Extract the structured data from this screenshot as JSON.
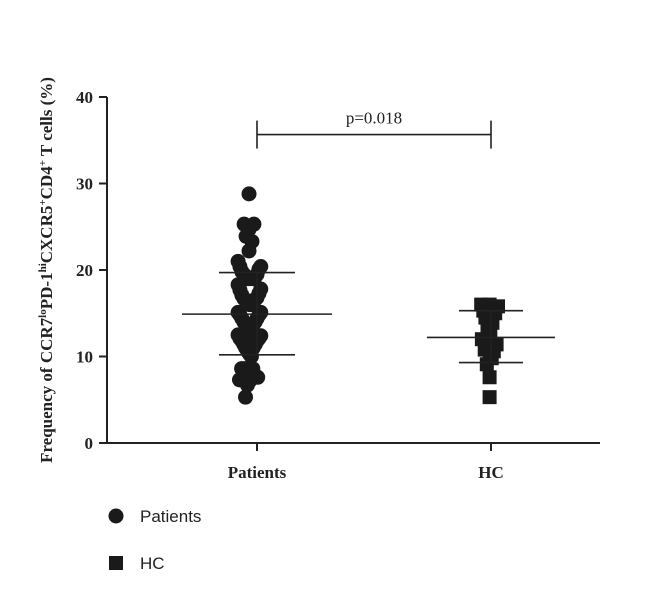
{
  "chart_data": {
    "type": "scatter",
    "ylabel": {
      "parts": [
        {
          "t": "Frequency of CCR7",
          "s": 0
        },
        {
          "t": "lo",
          "s": 1
        },
        {
          "t": "PD-1",
          "s": 0
        },
        {
          "t": "hi",
          "s": 1
        },
        {
          "t": "CXCR5",
          "s": 0
        },
        {
          "t": "+",
          "s": 1
        },
        {
          "t": "CD4",
          "s": 0
        },
        {
          "t": "+",
          "s": 1
        },
        {
          "t": " T cells (%)",
          "s": 0
        }
      ]
    },
    "ylim": [
      0,
      40
    ],
    "yticks": [
      "0",
      "10",
      "20",
      "30",
      "40"
    ],
    "categories": [
      "Patients",
      "HC"
    ],
    "annotation": {
      "text": "p=0.018",
      "from": "Patients",
      "to": "HC",
      "y": 36
    },
    "legend": {
      "position": "bottom-left",
      "items": [
        "Patients",
        "HC"
      ]
    },
    "series": [
      {
        "name": "Patients",
        "marker": "circle",
        "mean": 14.9,
        "sd_low": 10.2,
        "sd_high": 19.7,
        "points": [
          {
            "x": -0.57,
            "y": 28.8
          },
          {
            "x": -0.92,
            "y": 25.3
          },
          {
            "x": -0.22,
            "y": 25.3
          },
          {
            "x": -0.78,
            "y": 23.9
          },
          {
            "x": -0.57,
            "y": 24.7
          },
          {
            "x": -0.36,
            "y": 23.3
          },
          {
            "x": -0.57,
            "y": 22.2
          },
          {
            "x": -1.35,
            "y": 21.0
          },
          {
            "x": -1.22,
            "y": 20.4
          },
          {
            "x": -1.08,
            "y": 19.8
          },
          {
            "x": -0.94,
            "y": 19.5
          },
          {
            "x": -0.81,
            "y": 19.2
          },
          {
            "x": -0.67,
            "y": 19.0
          },
          {
            "x": -0.54,
            "y": 19.0
          },
          {
            "x": -0.4,
            "y": 19.0
          },
          {
            "x": -0.27,
            "y": 19.0
          },
          {
            "x": -0.13,
            "y": 19.2
          },
          {
            "x": 0.0,
            "y": 19.5
          },
          {
            "x": 0.14,
            "y": 20.1
          },
          {
            "x": 0.27,
            "y": 20.4
          },
          {
            "x": -1.35,
            "y": 18.3
          },
          {
            "x": -1.22,
            "y": 17.7
          },
          {
            "x": -1.08,
            "y": 17.1
          },
          {
            "x": -0.94,
            "y": 16.7
          },
          {
            "x": -0.81,
            "y": 16.5
          },
          {
            "x": -0.67,
            "y": 16.2
          },
          {
            "x": -0.54,
            "y": 16.0
          },
          {
            "x": -0.4,
            "y": 16.0
          },
          {
            "x": -0.27,
            "y": 16.2
          },
          {
            "x": -0.13,
            "y": 16.6
          },
          {
            "x": 0.0,
            "y": 16.8
          },
          {
            "x": 0.14,
            "y": 17.3
          },
          {
            "x": 0.27,
            "y": 17.8
          },
          {
            "x": -1.35,
            "y": 15.1
          },
          {
            "x": -1.22,
            "y": 14.8
          },
          {
            "x": -1.08,
            "y": 14.4
          },
          {
            "x": -0.94,
            "y": 14.0
          },
          {
            "x": -0.81,
            "y": 13.7
          },
          {
            "x": -0.67,
            "y": 13.2
          },
          {
            "x": -0.54,
            "y": 12.8
          },
          {
            "x": -0.4,
            "y": 13.2
          },
          {
            "x": -0.27,
            "y": 13.7
          },
          {
            "x": -0.13,
            "y": 14.0
          },
          {
            "x": 0.0,
            "y": 14.4
          },
          {
            "x": 0.14,
            "y": 14.8
          },
          {
            "x": 0.27,
            "y": 15.1
          },
          {
            "x": -1.35,
            "y": 12.5
          },
          {
            "x": -1.22,
            "y": 12.1
          },
          {
            "x": -1.08,
            "y": 11.8
          },
          {
            "x": -0.94,
            "y": 11.4
          },
          {
            "x": -0.81,
            "y": 11.0
          },
          {
            "x": -0.67,
            "y": 10.6
          },
          {
            "x": -0.54,
            "y": 10.3
          },
          {
            "x": -0.4,
            "y": 10.6
          },
          {
            "x": -0.27,
            "y": 11.0
          },
          {
            "x": -0.13,
            "y": 11.4
          },
          {
            "x": 0.0,
            "y": 11.8
          },
          {
            "x": 0.14,
            "y": 12.1
          },
          {
            "x": 0.27,
            "y": 12.4
          },
          {
            "x": -0.4,
            "y": 10.0
          },
          {
            "x": -1.1,
            "y": 8.6
          },
          {
            "x": -0.88,
            "y": 8.6
          },
          {
            "x": -0.3,
            "y": 8.6
          },
          {
            "x": -1.25,
            "y": 7.3
          },
          {
            "x": -0.95,
            "y": 7.3
          },
          {
            "x": -0.7,
            "y": 7.8
          },
          {
            "x": -0.45,
            "y": 7.3
          },
          {
            "x": -0.2,
            "y": 7.6
          },
          {
            "x": 0.05,
            "y": 7.6
          },
          {
            "x": -0.68,
            "y": 6.7
          },
          {
            "x": -0.82,
            "y": 5.3
          }
        ]
      },
      {
        "name": "HC",
        "marker": "square",
        "mean": 12.2,
        "sd_low": 9.3,
        "sd_high": 15.3,
        "points": [
          {
            "x": -0.7,
            "y": 16.0
          },
          {
            "x": -0.1,
            "y": 16.0
          },
          {
            "x": 0.5,
            "y": 15.8
          },
          {
            "x": -0.55,
            "y": 15.3
          },
          {
            "x": 0.3,
            "y": 15.0
          },
          {
            "x": -0.4,
            "y": 14.5
          },
          {
            "x": 0.1,
            "y": 13.9
          },
          {
            "x": -0.25,
            "y": 13.7
          },
          {
            "x": -0.05,
            "y": 13.4
          },
          {
            "x": -0.25,
            "y": 12.8
          },
          {
            "x": -0.65,
            "y": 12.0
          },
          {
            "x": -0.05,
            "y": 11.9
          },
          {
            "x": 0.4,
            "y": 11.4
          },
          {
            "x": -0.45,
            "y": 10.8
          },
          {
            "x": -0.1,
            "y": 10.6
          },
          {
            "x": 0.2,
            "y": 10.6
          },
          {
            "x": 0.05,
            "y": 9.8
          },
          {
            "x": -0.3,
            "y": 9.1
          },
          {
            "x": -0.1,
            "y": 7.6
          },
          {
            "x": -0.1,
            "y": 5.3
          }
        ]
      }
    ]
  }
}
